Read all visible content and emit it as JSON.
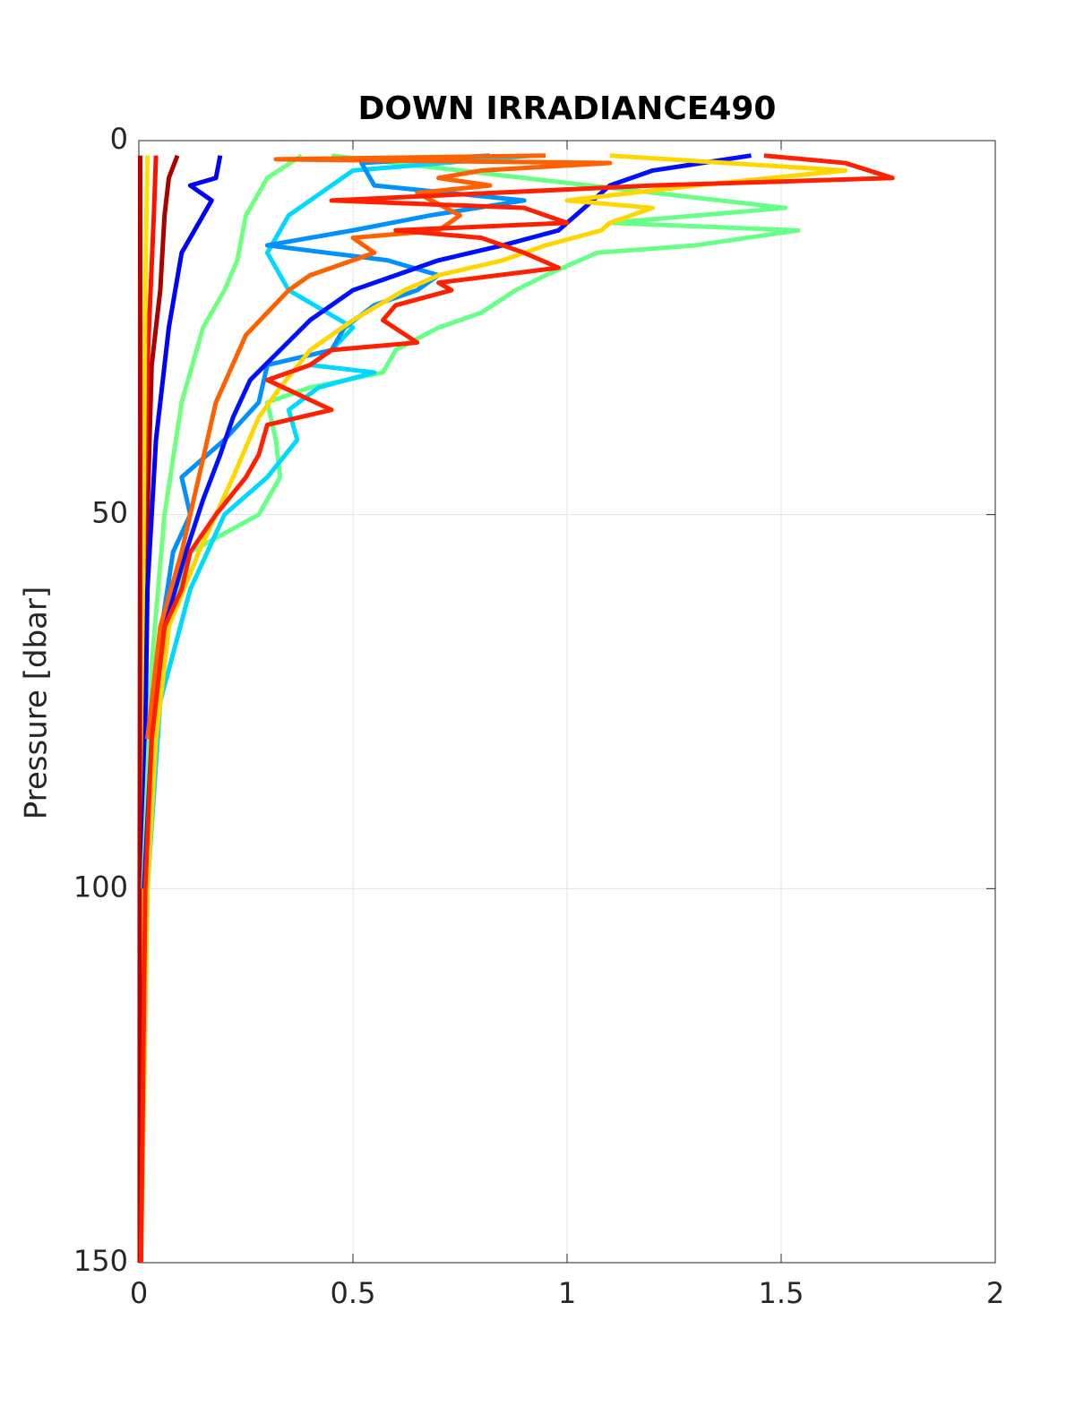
{
  "chart_data": {
    "type": "line",
    "title": "DOWN IRRADIANCE490",
    "y_label": "Pressure [dbar]",
    "xlim": [
      0,
      2
    ],
    "xticks": [
      0,
      0.5,
      1,
      1.5,
      2
    ],
    "ylim": [
      0,
      150
    ],
    "yticks": [
      0,
      50,
      100,
      150
    ],
    "y_reversed": true,
    "grid": true,
    "series": [
      {
        "color": "#aa0000",
        "x": [
          0.09,
          0.07,
          0.06,
          0.05,
          0.03,
          0.02,
          0.01,
          0.005
        ],
        "y": [
          2,
          5,
          10,
          20,
          30,
          50,
          100,
          150
        ]
      },
      {
        "color": "#ff1000",
        "x": [
          0.04,
          0.035,
          0.02,
          0.01,
          0.005
        ],
        "y": [
          2,
          10,
          30,
          60,
          150
        ]
      },
      {
        "color": "#ffe000",
        "x": [
          0.02,
          0.015,
          0.01,
          0.005
        ],
        "y": [
          2,
          20,
          60,
          150
        ]
      },
      {
        "color": "#bb0000",
        "x": [
          0.003,
          0.003,
          0.002,
          0.002
        ],
        "y": [
          2,
          40,
          100,
          150
        ]
      },
      {
        "color": "#0000ff",
        "x": [
          0.19,
          0.18,
          0.12,
          0.17,
          0.1,
          0.07,
          0.04,
          0.02,
          0.01
        ],
        "y": [
          2,
          5,
          6,
          8,
          15,
          25,
          40,
          60,
          100
        ]
      },
      {
        "color": "#70ff80",
        "x": [
          0.38,
          0.3,
          0.25,
          0.23,
          0.2,
          0.15,
          0.1,
          0.06,
          0.03,
          0.01
        ],
        "y": [
          2,
          5,
          10,
          16,
          20,
          25,
          35,
          50,
          70,
          100
        ]
      },
      {
        "color": "#66ff88",
        "x": [
          0.45,
          0.9,
          1.51,
          1.1,
          1.54,
          1.3,
          1.07,
          0.95,
          0.88,
          0.8,
          0.7,
          0.6,
          0.57,
          0.4,
          0.3,
          0.32,
          0.33,
          0.28,
          0.12,
          0.07,
          0.04,
          0.02
        ],
        "y": [
          2,
          5,
          9,
          11,
          12,
          14,
          15,
          18,
          20,
          23,
          25,
          28,
          31,
          33,
          35,
          40,
          45,
          50,
          55,
          65,
          80,
          100
        ]
      },
      {
        "color": "#00d8ff",
        "x": [
          0.92,
          0.5,
          0.45,
          0.35,
          0.3,
          0.35,
          0.5,
          0.45,
          0.4,
          0.55,
          0.42,
          0.35,
          0.37,
          0.3,
          0.2,
          0.12,
          0.05,
          0.02
        ],
        "y": [
          2,
          4,
          6,
          10,
          15,
          20,
          25,
          28,
          30,
          31,
          33,
          36,
          40,
          45,
          50,
          60,
          75,
          100
        ]
      },
      {
        "color": "#0090ff",
        "x": [
          0.82,
          0.52,
          0.55,
          0.9,
          0.68,
          0.5,
          0.3,
          0.58,
          0.7,
          0.65,
          0.55,
          0.48,
          0.45,
          0.3,
          0.28,
          0.2,
          0.1,
          0.12,
          0.08,
          0.04,
          0.015
        ],
        "y": [
          2,
          3,
          6,
          8,
          10,
          12,
          14,
          16,
          18,
          20,
          22,
          25,
          28,
          30,
          35,
          40,
          45,
          50,
          55,
          70,
          100
        ]
      },
      {
        "color": "#0010ff",
        "x": [
          1.43,
          1.2,
          1.1,
          0.98,
          0.85,
          0.7,
          0.6,
          0.5,
          0.45,
          0.4,
          0.33,
          0.26,
          0.22,
          0.19,
          0.15,
          0.11,
          0.06,
          0.03,
          0.012
        ],
        "y": [
          2,
          4,
          6,
          12,
          14,
          16,
          18,
          20,
          22,
          24,
          28,
          32,
          37,
          42,
          48,
          55,
          65,
          80,
          100
        ]
      },
      {
        "color": "#ff6000",
        "x": [
          0.95,
          0.32,
          1.1,
          0.8,
          0.7,
          0.82,
          0.65,
          0.75,
          0.7,
          0.5,
          0.55,
          0.4,
          0.35,
          0.3,
          0.25,
          0.18,
          0.14,
          0.1,
          0.05,
          0.02
        ],
        "y": [
          2,
          2.5,
          3,
          4,
          5,
          6,
          7,
          10,
          12,
          13,
          15,
          18,
          20,
          23,
          26,
          35,
          45,
          55,
          65,
          80
        ]
      },
      {
        "color": "#ffd700",
        "x": [
          1.1,
          1.65,
          1.3,
          1.0,
          1.2,
          1.1,
          1.08,
          0.95,
          0.85,
          0.7,
          0.62,
          0.5,
          0.4,
          0.33,
          0.28,
          0.22,
          0.14,
          0.07,
          0.04,
          0.02,
          0.005
        ],
        "y": [
          2,
          4,
          6,
          8,
          9,
          11,
          12,
          14,
          16,
          18,
          20,
          24,
          28,
          33,
          37,
          45,
          55,
          65,
          80,
          100,
          150
        ]
      },
      {
        "color": "#ff2000",
        "x": [
          1.46,
          1.65,
          1.76,
          1.2,
          0.45,
          0.9,
          0.95,
          1.0,
          0.6,
          0.8,
          0.9,
          0.98,
          0.7,
          0.73,
          0.6,
          0.57,
          0.65,
          0.45,
          0.4,
          0.3,
          0.45,
          0.3,
          0.28,
          0.25,
          0.18,
          0.12,
          0.1,
          0.06,
          0.03,
          0.015,
          0.005
        ],
        "y": [
          2,
          3,
          5,
          6,
          8,
          9,
          10,
          11,
          12,
          13,
          15,
          17,
          19,
          20,
          22,
          24,
          27,
          28,
          30,
          32,
          36,
          38,
          42,
          45,
          50,
          55,
          60,
          65,
          80,
          100,
          150
        ]
      }
    ]
  }
}
